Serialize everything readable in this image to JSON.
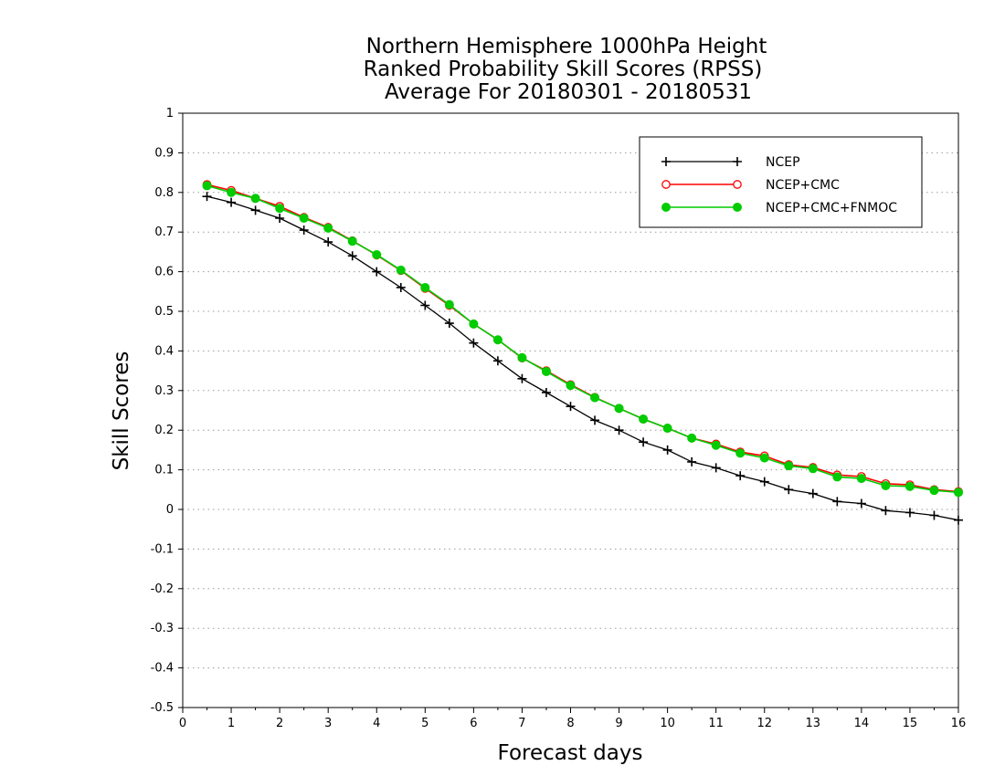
{
  "chart_data": {
    "type": "line",
    "title": [
      "Northern Hemisphere 1000hPa Height",
      "Ranked Probability Skill Scores (RPSS)",
      "Average For 20180301 - 20180531"
    ],
    "xlabel": "Forecast days",
    "ylabel": "Skill Scores",
    "xlim": [
      0,
      16
    ],
    "ylim": [
      -0.5,
      1
    ],
    "x_ticks": [
      "0",
      "1",
      "2",
      "3",
      "4",
      "5",
      "6",
      "7",
      "8",
      "9",
      "10",
      "11",
      "12",
      "13",
      "14",
      "15",
      "16"
    ],
    "y_ticks": [
      "1",
      "0.9",
      "0.8",
      "0.7",
      "0.6",
      "0.5",
      "0.4",
      "0.3",
      "0.2",
      "0.1",
      "0",
      "-0.1",
      "-0.2",
      "-0.3",
      "-0.4",
      "-0.5"
    ],
    "grid": "horizontal dotted",
    "legend_position": "top-right",
    "x": [
      0.5,
      1,
      1.5,
      2,
      2.5,
      3,
      3.5,
      4,
      4.5,
      5,
      5.5,
      6,
      6.5,
      7,
      7.5,
      8,
      8.5,
      9,
      9.5,
      10,
      10.5,
      11,
      11.5,
      12,
      12.5,
      13,
      13.5,
      14,
      14.5,
      15,
      15.5,
      16
    ],
    "series": [
      {
        "name": "NCEP",
        "color": "#000000",
        "marker": "plus",
        "values": [
          0.79,
          0.775,
          0.755,
          0.735,
          0.705,
          0.675,
          0.64,
          0.6,
          0.56,
          0.515,
          0.47,
          0.42,
          0.375,
          0.33,
          0.295,
          0.26,
          0.225,
          0.2,
          0.17,
          0.15,
          0.12,
          0.105,
          0.085,
          0.07,
          0.05,
          0.04,
          0.02,
          0.015,
          -0.003,
          -0.008,
          -0.015,
          -0.027
        ]
      },
      {
        "name": "NCEP+CMC",
        "color": "#ff0000",
        "marker": "open-circle",
        "values": [
          0.82,
          0.805,
          0.785,
          0.765,
          0.737,
          0.712,
          0.678,
          0.642,
          0.603,
          0.558,
          0.515,
          0.468,
          0.428,
          0.382,
          0.35,
          0.315,
          0.283,
          0.255,
          0.228,
          0.205,
          0.18,
          0.165,
          0.145,
          0.135,
          0.113,
          0.106,
          0.087,
          0.083,
          0.065,
          0.062,
          0.05,
          0.045
        ]
      },
      {
        "name": "NCEP+CMC+FNMOC",
        "color": "#00cc00",
        "marker": "filled-circle",
        "values": [
          0.817,
          0.8,
          0.785,
          0.76,
          0.735,
          0.71,
          0.677,
          0.643,
          0.604,
          0.56,
          0.517,
          0.468,
          0.428,
          0.383,
          0.348,
          0.313,
          0.282,
          0.255,
          0.228,
          0.205,
          0.18,
          0.162,
          0.142,
          0.13,
          0.11,
          0.103,
          0.082,
          0.078,
          0.06,
          0.058,
          0.048,
          0.043
        ]
      }
    ]
  }
}
